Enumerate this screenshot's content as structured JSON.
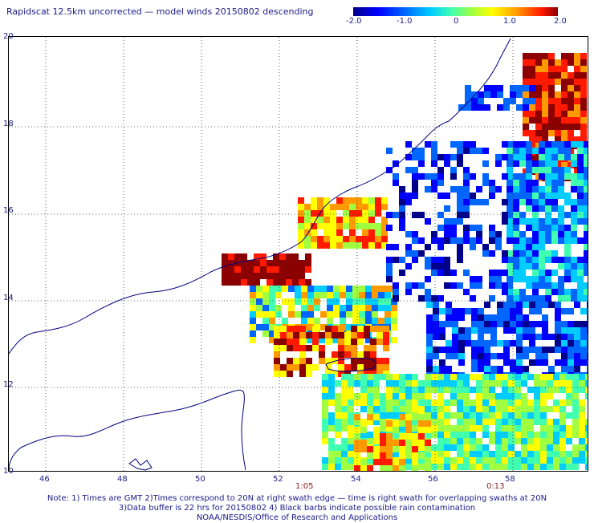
{
  "title": "Rapidscat 12.5km uncorrected — model winds 20150802 descending",
  "colorbar": {
    "ticks": [
      "-2.0",
      "-1.0",
      "0",
      "1.0",
      "2.0"
    ],
    "colors": [
      "#00008a",
      "#0000ff",
      "#0066ff",
      "#00ccff",
      "#40ffb0",
      "#a0ff40",
      "#ffff00",
      "#ff9900",
      "#ff1a00",
      "#8b0000"
    ]
  },
  "map": {
    "lat_labels": [
      "20",
      "18",
      "16",
      "14",
      "12",
      "10"
    ],
    "lon_labels": [
      "46",
      "48",
      "50",
      "52",
      "54",
      "56",
      "58"
    ],
    "time_labels": [
      "1:05",
      "0:13"
    ],
    "lat_range": [
      10,
      20
    ],
    "lon_range": [
      44.8,
      60
    ]
  },
  "notes": {
    "line1": "Note: 1) Times are GMT 2)Times correspond to 20N at right swath edge — time is right swath for overlapping swaths at 20N",
    "line2": "3)Data buffer is 22 hrs for 20150802 4) Black barbs indicate possible rain contamination",
    "line3": "NOAA/NESDIS/Office of Research and Applications"
  }
}
